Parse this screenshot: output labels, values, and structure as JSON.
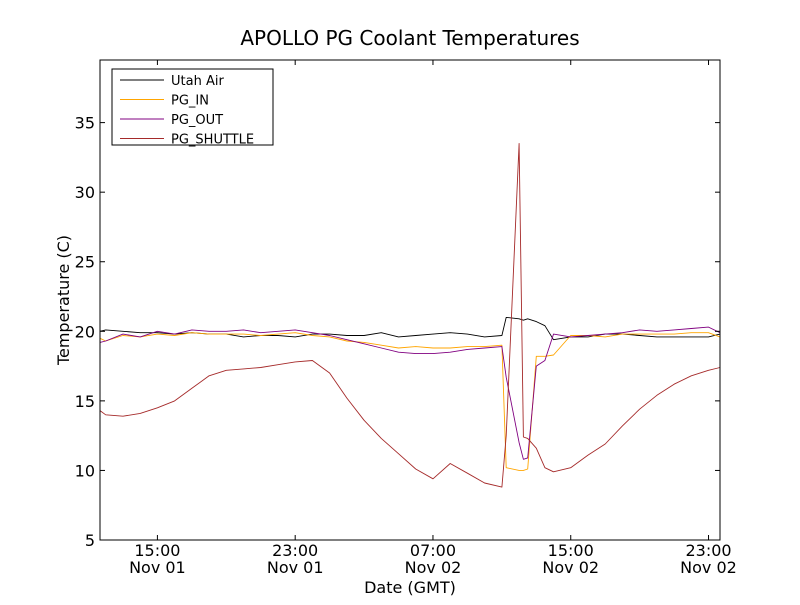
{
  "chart_data": {
    "type": "line",
    "title": "APOLLO PG Coolant Temperatures",
    "xlabel": "Date (GMT)",
    "ylabel": "Temperature (C)",
    "x_unit": "hours",
    "xlim": [
      "2012-11-01 11:40",
      "2012-11-02 23:40"
    ],
    "ylim": [
      5,
      39.5
    ],
    "yticks": [
      5,
      10,
      15,
      20,
      25,
      30,
      35
    ],
    "xticks": [
      {
        "at": "2012-11-01 15:00",
        "line1": "15:00",
        "line2": "Nov 01"
      },
      {
        "at": "2012-11-01 23:00",
        "line1": "23:00",
        "line2": "Nov 01"
      },
      {
        "at": "2012-11-02 07:00",
        "line1": "07:00",
        "line2": "Nov 02"
      },
      {
        "at": "2012-11-02 15:00",
        "line1": "15:00",
        "line2": "Nov 02"
      },
      {
        "at": "2012-11-02 23:00",
        "line1": "23:00",
        "line2": "Nov 02"
      }
    ],
    "grid": false,
    "legend_position": "top-left",
    "x": [
      "2012-11-01 11:40",
      "2012-11-01 12:00",
      "2012-11-01 13:00",
      "2012-11-01 14:00",
      "2012-11-01 15:00",
      "2012-11-01 16:00",
      "2012-11-01 17:00",
      "2012-11-01 18:00",
      "2012-11-01 19:00",
      "2012-11-01 20:00",
      "2012-11-01 21:00",
      "2012-11-01 22:00",
      "2012-11-01 23:00",
      "2012-11-02 00:00",
      "2012-11-02 01:00",
      "2012-11-02 02:00",
      "2012-11-02 03:00",
      "2012-11-02 04:00",
      "2012-11-02 05:00",
      "2012-11-02 06:00",
      "2012-11-02 07:00",
      "2012-11-02 08:00",
      "2012-11-02 09:00",
      "2012-11-02 10:00",
      "2012-11-02 11:00",
      "2012-11-02 11:15",
      "2012-11-02 12:00",
      "2012-11-02 12:15",
      "2012-11-02 12:30",
      "2012-11-02 13:00",
      "2012-11-02 13:30",
      "2012-11-02 14:00",
      "2012-11-02 15:00",
      "2012-11-02 16:00",
      "2012-11-02 17:00",
      "2012-11-02 18:00",
      "2012-11-02 19:00",
      "2012-11-02 20:00",
      "2012-11-02 21:00",
      "2012-11-02 22:00",
      "2012-11-02 23:00",
      "2012-11-02 23:40"
    ],
    "series": [
      {
        "name": "Utah Air",
        "color": "#000000",
        "values": [
          20.0,
          20.1,
          20.0,
          19.9,
          19.9,
          19.8,
          19.9,
          19.8,
          19.8,
          19.6,
          19.7,
          19.7,
          19.6,
          19.8,
          19.8,
          19.7,
          19.7,
          19.9,
          19.6,
          19.7,
          19.8,
          19.9,
          19.8,
          19.6,
          19.7,
          21.0,
          20.9,
          20.8,
          20.9,
          20.7,
          20.4,
          19.4,
          19.6,
          19.6,
          19.8,
          19.8,
          19.7,
          19.6,
          19.6,
          19.6,
          19.6,
          19.8
        ]
      },
      {
        "name": "PG_IN",
        "color": "#ffa500",
        "values": [
          19.5,
          19.3,
          19.7,
          19.6,
          19.8,
          19.7,
          19.9,
          19.8,
          19.8,
          19.8,
          19.7,
          19.8,
          19.9,
          19.7,
          19.6,
          19.3,
          19.2,
          19.0,
          18.8,
          18.9,
          18.8,
          18.8,
          18.9,
          18.9,
          19.0,
          10.2,
          10.0,
          10.0,
          10.1,
          18.2,
          18.2,
          18.3,
          19.7,
          19.7,
          19.6,
          19.8,
          19.8,
          19.8,
          19.8,
          19.9,
          19.9,
          19.6
        ]
      },
      {
        "name": "PG_OUT",
        "color": "#800080",
        "values": [
          19.2,
          19.3,
          19.8,
          19.6,
          20.0,
          19.8,
          20.1,
          20.0,
          20.0,
          20.1,
          19.9,
          20.0,
          20.1,
          19.9,
          19.7,
          19.4,
          19.1,
          18.8,
          18.5,
          18.4,
          18.4,
          18.5,
          18.7,
          18.8,
          18.9,
          16.7,
          12.0,
          10.8,
          10.9,
          17.5,
          17.9,
          19.8,
          19.6,
          19.7,
          19.8,
          19.9,
          20.1,
          20.0,
          20.1,
          20.2,
          20.3,
          19.9
        ]
      },
      {
        "name": "PG_SHUTTLE",
        "color": "#a52a2a",
        "values": [
          14.3,
          14.0,
          13.9,
          14.1,
          14.5,
          15.0,
          15.9,
          16.8,
          17.2,
          17.3,
          17.4,
          17.6,
          17.8,
          17.9,
          17.0,
          15.2,
          13.6,
          12.3,
          11.2,
          10.1,
          9.4,
          10.5,
          9.8,
          9.1,
          8.8,
          12.5,
          33.5,
          12.4,
          12.3,
          11.6,
          10.2,
          9.9,
          10.2,
          11.1,
          11.9,
          13.2,
          14.4,
          15.4,
          16.2,
          16.8,
          17.2,
          17.4
        ]
      }
    ]
  }
}
